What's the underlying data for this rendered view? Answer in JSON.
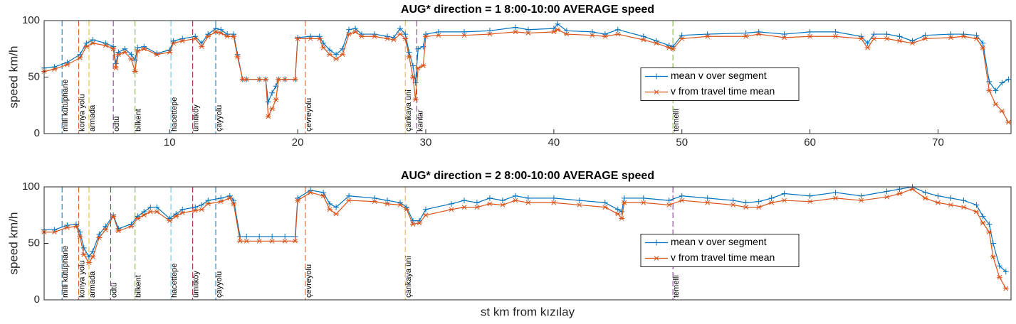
{
  "chart_data": [
    {
      "type": "line",
      "title": "AUG* direction = 1 8:00-10:00 AVERAGE speed",
      "ylabel": "speed km/h",
      "xlim": [
        0.2,
        75.7
      ],
      "ylim": [
        0,
        100
      ],
      "yticks": [
        0,
        50,
        100
      ],
      "xticks": [
        10,
        20,
        30,
        40,
        50,
        60,
        70
      ],
      "legend": "center",
      "x": [
        0.2,
        1,
        2,
        3,
        3.5,
        4,
        5,
        5.6,
        5.8,
        6,
        6.5,
        7,
        7.3,
        7.5,
        8,
        9,
        10,
        10.3,
        11,
        12,
        12.5,
        13,
        13.6,
        14,
        14.5,
        15,
        15.3,
        15.7,
        16,
        17,
        17.5,
        17.7,
        18,
        18.3,
        18.5,
        19,
        19.8,
        20,
        21,
        21.7,
        22,
        22.5,
        23,
        23.5,
        24,
        24.5,
        25,
        26,
        27,
        27.5,
        28,
        28.4,
        28.7,
        29,
        29.2,
        29.4,
        29.8,
        30,
        31,
        33,
        35,
        37,
        38,
        40,
        40.3,
        41,
        43,
        44,
        45,
        47,
        48,
        49,
        49.3,
        50,
        52,
        55,
        56,
        58,
        60,
        62,
        64,
        64.5,
        65,
        66,
        67,
        68,
        69,
        71,
        72,
        73,
        73.5,
        74,
        74.5,
        75,
        75.5
      ],
      "series": [
        {
          "name": "mean v over segment",
          "color": "#0072BD",
          "marker": "+",
          "values": [
            58,
            59,
            63,
            70,
            80,
            83,
            80,
            77,
            62,
            72,
            75,
            70,
            65,
            76,
            77,
            71,
            74,
            82,
            84,
            86,
            80,
            88,
            93,
            92,
            88,
            88,
            70,
            48,
            48,
            48,
            48,
            28,
            36,
            42,
            48,
            48,
            48,
            85,
            86,
            86,
            80,
            74,
            70,
            75,
            92,
            93,
            88,
            88,
            86,
            85,
            93,
            88,
            72,
            60,
            45,
            75,
            77,
            88,
            90,
            90,
            91,
            94,
            92,
            93,
            97,
            91,
            90,
            88,
            92,
            86,
            82,
            78,
            77,
            87,
            88,
            89,
            90,
            88,
            90,
            90,
            86,
            80,
            88,
            88,
            86,
            82,
            87,
            88,
            88,
            87,
            80,
            46,
            38,
            45,
            48
          ]
        },
        {
          "name": "v from travel time mean",
          "color": "#D95319",
          "marker": "*",
          "values": [
            55,
            57,
            61,
            67,
            77,
            80,
            78,
            75,
            58,
            70,
            72,
            66,
            55,
            73,
            75,
            70,
            72,
            80,
            82,
            84,
            77,
            86,
            90,
            89,
            86,
            86,
            68,
            48,
            48,
            48,
            48,
            15,
            22,
            30,
            48,
            48,
            48,
            84,
            84,
            84,
            76,
            70,
            66,
            70,
            88,
            90,
            86,
            86,
            84,
            83,
            88,
            84,
            68,
            50,
            30,
            58,
            60,
            86,
            87,
            87,
            88,
            90,
            89,
            90,
            92,
            88,
            87,
            86,
            88,
            83,
            80,
            76,
            75,
            84,
            86,
            86,
            88,
            85,
            86,
            86,
            84,
            76,
            84,
            84,
            82,
            80,
            84,
            85,
            86,
            84,
            76,
            38,
            26,
            20,
            10
          ]
        }
      ],
      "stations": [
        {
          "label": "milli kütüphane",
          "x": 1.6,
          "color": "#0072BD"
        },
        {
          "label": "konya yolu",
          "x": 2.9,
          "color": "#D95319"
        },
        {
          "label": "armada",
          "x": 3.7,
          "color": "#EDB120"
        },
        {
          "label": "odtü",
          "x": 5.6,
          "color": "#7E2F8E"
        },
        {
          "label": "bilkent",
          "x": 7.3,
          "color": "#77AC30"
        },
        {
          "label": "hacettepe",
          "x": 10.1,
          "color": "#4DBEEE"
        },
        {
          "label": "ümitköy",
          "x": 11.8,
          "color": "#A2142F"
        },
        {
          "label": "çayyolu",
          "x": 13.6,
          "color": "#0072BD"
        },
        {
          "label": "çevreyolu",
          "x": 20.6,
          "color": "#D95319"
        },
        {
          "label": "çankaya üni",
          "x": 28.4,
          "color": "#EDB120"
        },
        {
          "label": "kantar",
          "x": 29.3,
          "color": "#7E2F8E"
        },
        {
          "label": "temelli",
          "x": 49.3,
          "color": "#77AC30"
        }
      ]
    },
    {
      "type": "line",
      "title": "AUG* direction = 2 8:00-10:00 AVERAGE speed",
      "ylabel": "speed km/h",
      "xlabel": "st km from kızılay",
      "xlim": [
        0.2,
        75.7
      ],
      "ylim": [
        0,
        100
      ],
      "yticks": [
        0,
        50,
        100
      ],
      "legend": "center",
      "x": [
        0.2,
        1,
        2,
        2.7,
        3,
        3.3,
        3.7,
        4,
        4.5,
        5,
        5.6,
        6,
        7,
        7.5,
        8,
        8.5,
        9,
        10,
        10.5,
        11,
        12,
        12.5,
        13,
        14,
        14.7,
        15,
        15.5,
        16,
        17,
        18,
        19,
        19.8,
        20,
        21,
        22,
        22.5,
        23,
        24,
        26,
        27,
        28,
        28.5,
        29,
        29.5,
        30,
        32,
        33,
        34,
        35,
        36,
        37,
        38,
        40,
        42,
        44,
        45,
        45.3,
        45.5,
        47,
        49,
        50,
        52,
        54,
        55,
        56,
        57,
        58,
        60,
        62,
        64,
        66,
        67,
        68,
        69,
        70,
        71,
        72,
        73,
        73.5,
        74,
        74.3,
        74.8,
        75.3
      ],
      "series": [
        {
          "name": "mean v over segment",
          "color": "#0072BD",
          "marker": "+",
          "values": [
            62,
            62,
            66,
            67,
            60,
            46,
            38,
            43,
            58,
            65,
            75,
            63,
            67,
            74,
            78,
            82,
            82,
            72,
            76,
            80,
            82,
            84,
            88,
            90,
            92,
            88,
            56,
            56,
            56,
            56,
            56,
            56,
            90,
            97,
            95,
            85,
            82,
            92,
            90,
            88,
            86,
            82,
            70,
            70,
            80,
            85,
            88,
            86,
            90,
            88,
            92,
            90,
            90,
            88,
            86,
            80,
            78,
            90,
            90,
            88,
            92,
            90,
            88,
            86,
            87,
            90,
            94,
            92,
            95,
            92,
            96,
            98,
            100,
            95,
            92,
            90,
            88,
            84,
            74,
            67,
            50,
            30,
            25
          ]
        },
        {
          "name": "v from travel time mean",
          "color": "#D95319",
          "marker": "*",
          "values": [
            60,
            60,
            64,
            65,
            56,
            40,
            33,
            38,
            55,
            62,
            74,
            61,
            65,
            72,
            75,
            78,
            78,
            70,
            74,
            77,
            79,
            80,
            85,
            87,
            90,
            85,
            52,
            52,
            52,
            52,
            52,
            52,
            88,
            95,
            92,
            80,
            76,
            88,
            87,
            85,
            84,
            80,
            67,
            68,
            75,
            80,
            82,
            82,
            85,
            84,
            88,
            86,
            86,
            84,
            82,
            76,
            72,
            86,
            86,
            84,
            88,
            86,
            84,
            82,
            82,
            86,
            88,
            87,
            90,
            88,
            91,
            94,
            98,
            90,
            86,
            84,
            82,
            78,
            68,
            60,
            38,
            20,
            10
          ]
        }
      ],
      "stations": [
        {
          "label": "milli kütüphane",
          "x": 1.6,
          "color": "#0072BD"
        },
        {
          "label": "konya yolu",
          "x": 2.9,
          "color": "#D95319"
        },
        {
          "label": "armada",
          "x": 3.7,
          "color": "#EDB120"
        },
        {
          "label": "odtü",
          "x": 5.4,
          "color": "#7E2F8E"
        },
        {
          "label": "bilkent",
          "x": 7.3,
          "color": "#77AC30"
        },
        {
          "label": "hacettepe",
          "x": 10.1,
          "color": "#4DBEEE"
        },
        {
          "label": "ümitköy",
          "x": 11.8,
          "color": "#A2142F"
        },
        {
          "label": "çayyolu",
          "x": 13.6,
          "color": "#0072BD"
        },
        {
          "label": "çevreyolu",
          "x": 20.6,
          "color": "#D95319"
        },
        {
          "label": "çankaya üni",
          "x": 28.4,
          "color": "#EDB120"
        },
        {
          "label": "temelli",
          "x": 49.3,
          "color": "#7E2F8E"
        }
      ]
    }
  ]
}
